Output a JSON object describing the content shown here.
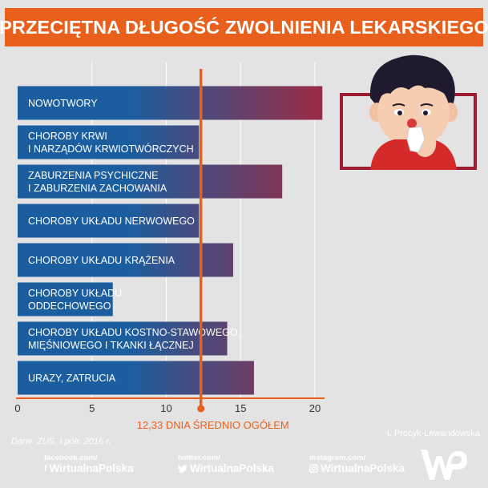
{
  "title": "PRZECIĘTNA DŁUGOŚĆ ZWOLNIENIA LEKARSKIEGO",
  "chart_data": {
    "type": "bar",
    "orientation": "horizontal",
    "categories": [
      [
        "NOWOTWORY"
      ],
      [
        "CHOROBY KRWI",
        "I NARZĄDÓW KRWIOTWÓRCZYCH"
      ],
      [
        "ZABURZENIA PSYCHICZNE",
        "I ZABURZENIA ZACHOWANIA"
      ],
      [
        "CHOROBY UKŁADU NERWOWEGO"
      ],
      [
        "CHOROBY UKŁADU KRĄŻENIA"
      ],
      [
        "CHOROBY UKŁADU",
        "ODDECHOWEGO"
      ],
      [
        "CHOROBY UKŁADU KOSTNO-STAWOWEGO,",
        "MIĘŚNIOWEGO I TKANKI ŁĄCZNEJ"
      ],
      [
        "URAZY, ZATRUCIA"
      ]
    ],
    "values": [
      20.5,
      12.2,
      17.8,
      12.2,
      14.5,
      6.4,
      14.1,
      15.9
    ],
    "xlim": [
      0,
      21
    ],
    "xticks": [
      "0",
      "5",
      "10",
      "15",
      "20"
    ],
    "xtick_values": [
      0,
      5,
      10,
      15,
      20
    ],
    "grid": true,
    "average": {
      "value": 12.33,
      "label": "12,33 DNIA ŚREDNIO OGÓŁEM"
    },
    "colors": {
      "bar_start": "#1a5ea0",
      "bar_end": "#a0283f",
      "average": "#e8601c",
      "axis": "#e8601c",
      "grid": "#ffffff"
    }
  },
  "footer": {
    "source": "Dane: ZUS, I półr. 2016 r.",
    "author": "I. Procyk-Lewandowska",
    "social": [
      {
        "small": "facebook.com/",
        "big": "WirtualnaPolska",
        "icon": "facebook-icon",
        "glyph": "f"
      },
      {
        "small": "twitter.com/",
        "big": "WirtualnaPolska",
        "icon": "twitter-icon",
        "glyph": "🐦"
      },
      {
        "small": "instagram.com/",
        "big": "WirtualnaPolska",
        "icon": "instagram-icon",
        "glyph": "◎"
      }
    ],
    "logo": "wp-logo"
  }
}
